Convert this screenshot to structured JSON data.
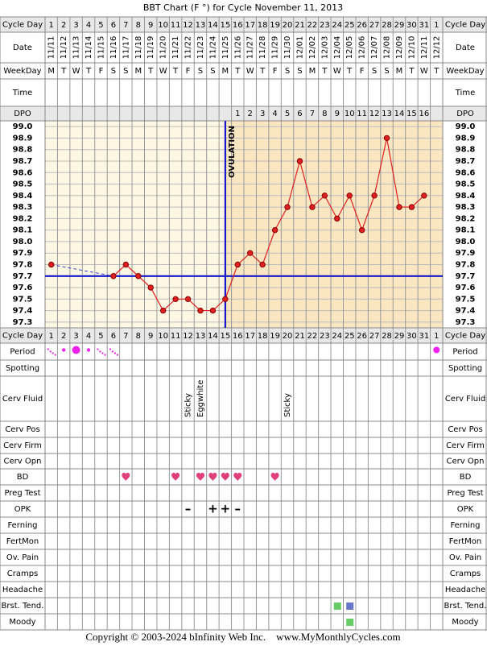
{
  "chart_data": {
    "type": "line",
    "title": "BBT Chart (F °) for Cycle November 11, 2013",
    "cycle_days": [
      1,
      2,
      3,
      4,
      5,
      6,
      7,
      8,
      9,
      10,
      11,
      12,
      13,
      14,
      15,
      16,
      17,
      18,
      19,
      20,
      21,
      22,
      23,
      24,
      25,
      26,
      27,
      28,
      29,
      30,
      31,
      1
    ],
    "categories": [
      "11/11",
      "11/12",
      "11/13",
      "11/14",
      "11/15",
      "11/16",
      "11/17",
      "11/18",
      "11/19",
      "11/20",
      "11/21",
      "11/22",
      "11/23",
      "11/24",
      "11/25",
      "11/26",
      "11/27",
      "11/28",
      "11/29",
      "11/30",
      "12/01",
      "12/02",
      "12/03",
      "12/04",
      "12/05",
      "12/06",
      "12/07",
      "12/08",
      "12/09",
      "12/10",
      "12/11",
      "12/12"
    ],
    "weekdays": [
      "M",
      "T",
      "W",
      "T",
      "F",
      "S",
      "S",
      "M",
      "T",
      "W",
      "T",
      "F",
      "S",
      "S",
      "M",
      "T",
      "W",
      "T",
      "F",
      "S",
      "S",
      "M",
      "T",
      "W",
      "T",
      "F",
      "S",
      "S",
      "M",
      "T",
      "W",
      "T"
    ],
    "dpo": [
      null,
      null,
      null,
      null,
      null,
      null,
      null,
      null,
      null,
      null,
      null,
      null,
      null,
      null,
      null,
      1,
      2,
      3,
      4,
      5,
      6,
      7,
      8,
      9,
      10,
      11,
      12,
      13,
      14,
      15,
      16,
      null
    ],
    "values": [
      97.8,
      null,
      null,
      null,
      null,
      97.7,
      97.8,
      97.7,
      97.6,
      97.4,
      97.5,
      97.5,
      97.4,
      97.4,
      97.5,
      97.8,
      97.9,
      97.8,
      98.1,
      98.3,
      98.7,
      98.3,
      98.4,
      98.2,
      98.4,
      98.1,
      98.4,
      98.9,
      98.3,
      98.3,
      98.4,
      null
    ],
    "color": "#e02020",
    "coverline": 97.7,
    "ovulation_day": 15,
    "ovulation_label": "OVULATION",
    "ylim": [
      97.25,
      99.05
    ],
    "yticks": [
      {
        "value": 99.0,
        "label": "99.0"
      },
      98.9,
      98.8,
      98.7,
      98.6,
      98.5,
      98.4,
      98.3,
      98.2,
      98.1,
      {
        "value": 98.0,
        "label": "98.0"
      },
      97.9,
      97.8,
      97.7,
      97.6,
      97.5,
      97.4,
      97.3
    ],
    "grid": true,
    "top_rows": [
      "Cycle Day",
      "Date",
      "WeekDay",
      "Time",
      "DPO"
    ],
    "bottom_rows": [
      "Cycle Day",
      "Period",
      "Spotting",
      "Cerv Fluid",
      "Cerv Pos",
      "Cerv Firm",
      "Cerv Opn",
      "BD",
      "Preg Test",
      "OPK",
      "Ferning",
      "FertMon",
      "Ov. Pain",
      "Cramps",
      "Headache",
      "Brst. Tend.",
      "Moody"
    ],
    "cerv_fluid": [
      null,
      null,
      null,
      null,
      null,
      null,
      null,
      null,
      null,
      null,
      null,
      "Sticky",
      "Eggwhite",
      null,
      null,
      null,
      null,
      null,
      null,
      "Sticky",
      null,
      null,
      null,
      null,
      null,
      null,
      null,
      null,
      null,
      null,
      null,
      null
    ],
    "opk": [
      null,
      null,
      null,
      null,
      null,
      null,
      null,
      null,
      null,
      null,
      null,
      "–",
      null,
      "+",
      "+",
      "–",
      null,
      null,
      null,
      null,
      null,
      null,
      null,
      null,
      null,
      null,
      null,
      null,
      null,
      null,
      null,
      null
    ],
    "footer": "Copyright © 2003-2024 bInfinity Web Inc.    www.MyMonthlyCycles.com"
  }
}
